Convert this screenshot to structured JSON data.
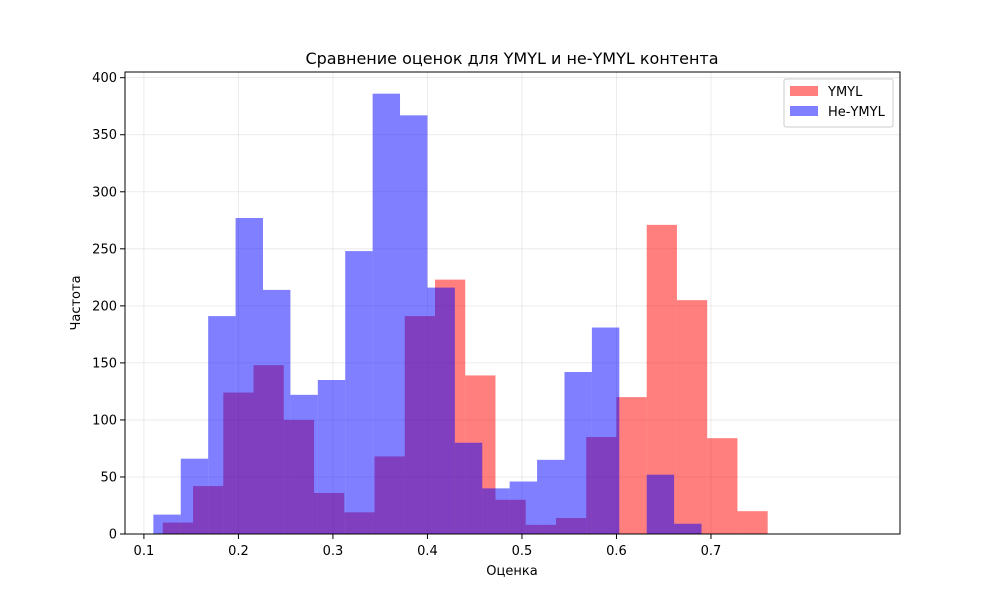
{
  "chart_data": {
    "type": "bar",
    "title": "Сравнение оценок для YMYL и не-YMYL контента",
    "xlabel": "Оценка",
    "ylabel": "Частота",
    "xlim": [
      0.08,
      0.9
    ],
    "ylim": [
      0,
      405
    ],
    "xticks": [
      0.1,
      0.2,
      0.3,
      0.4,
      0.5,
      0.6,
      0.7
    ],
    "xtick_labels": [
      "0.1",
      "0.2",
      "0.3",
      "0.4",
      "0.5",
      "0.6",
      "0.7"
    ],
    "yticks": [
      0,
      50,
      100,
      150,
      200,
      250,
      300,
      350,
      400
    ],
    "ytick_labels": [
      "0",
      "50",
      "100",
      "150",
      "200",
      "250",
      "300",
      "350",
      "400"
    ],
    "grid": true,
    "legend_position": "top-right",
    "series": [
      {
        "name": "YMYL",
        "color": "#ff0000",
        "alpha": 0.5,
        "bin_edges": [
          0.12,
          0.152,
          0.184,
          0.216,
          0.248,
          0.28,
          0.312,
          0.344,
          0.376,
          0.408,
          0.44,
          0.472,
          0.504,
          0.536,
          0.568,
          0.6,
          0.632,
          0.664,
          0.696,
          0.728,
          0.76
        ],
        "counts": [
          10,
          42,
          124,
          148,
          100,
          36,
          19,
          68,
          191,
          223,
          139,
          30,
          8,
          14,
          85,
          120,
          271,
          205,
          84,
          20
        ]
      },
      {
        "name": "Не-YMYL",
        "color": "#0000ff",
        "alpha": 0.5,
        "bin_edges": [
          0.11,
          0.139,
          0.168,
          0.197,
          0.226,
          0.255,
          0.284,
          0.313,
          0.342,
          0.371,
          0.4,
          0.429,
          0.458,
          0.487,
          0.516,
          0.545,
          0.574,
          0.603,
          0.632,
          0.661,
          0.69
        ],
        "counts": [
          17,
          66,
          191,
          277,
          214,
          122,
          135,
          248,
          386,
          367,
          216,
          80,
          40,
          46,
          65,
          142,
          181,
          0,
          52,
          9
        ]
      }
    ]
  }
}
